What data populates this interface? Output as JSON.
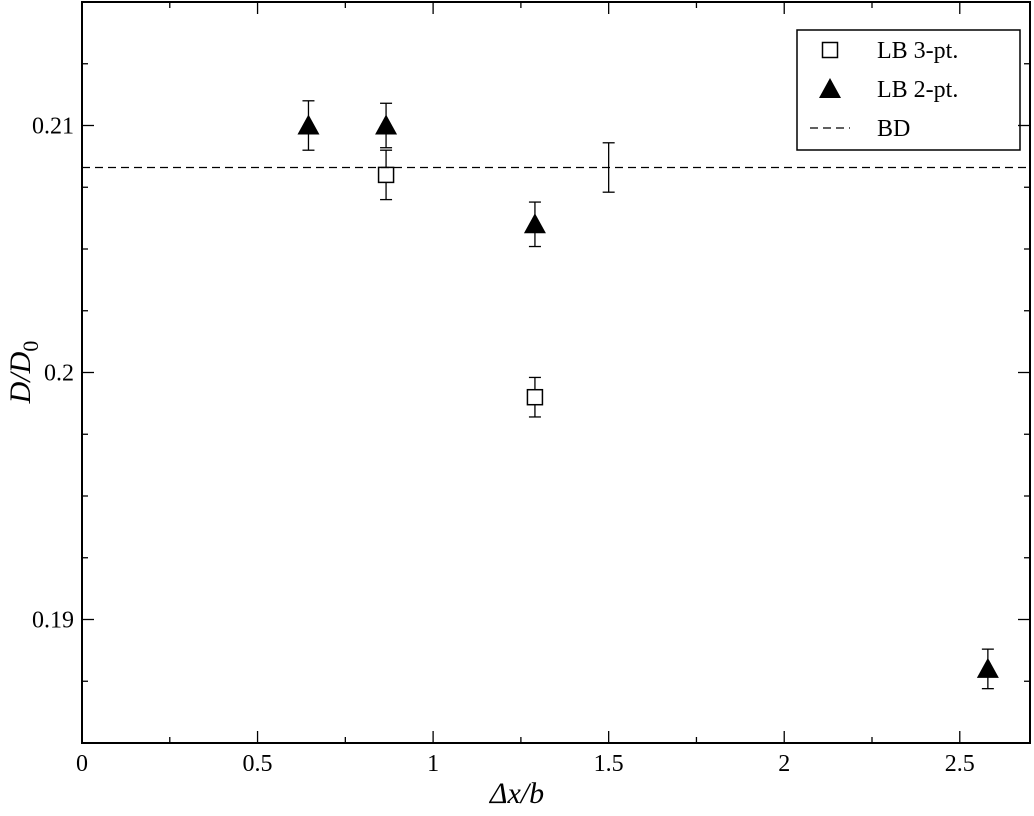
{
  "chart_data": {
    "type": "scatter",
    "xlabel": "Δx/b",
    "ylabel": "D/D",
    "ylabel_subscript": "0",
    "xlim": [
      0,
      2.7
    ],
    "ylim": [
      0.185,
      0.215
    ],
    "xticks": [
      0,
      0.5,
      1,
      1.5,
      2,
      2.5
    ],
    "yticks": [
      0.19,
      0.2,
      0.21
    ],
    "x_minor_ticks": [
      0.25,
      0.75,
      1.25,
      1.75,
      2.25
    ],
    "y_minor_ticks": [
      0.1875,
      0.1925,
      0.195,
      0.1975,
      0.2025,
      0.205,
      0.2075,
      0.2125
    ],
    "legend": "upper right",
    "series": [
      {
        "name": "LB 3-pt.",
        "marker": "open-square",
        "color": "#000000",
        "x": [
          0.866,
          1.29
        ],
        "values": [
          0.208,
          0.199
        ],
        "errors": [
          0.001,
          0.0008
        ]
      },
      {
        "name": "LB 2-pt.",
        "marker": "filled-triangle",
        "color": "#000000",
        "x": [
          0.645,
          0.866,
          1.29,
          2.58
        ],
        "values": [
          0.21,
          0.21,
          0.206,
          0.188
        ],
        "errors": [
          0.001,
          0.0009,
          0.0009,
          0.0008
        ]
      },
      {
        "name": "BD",
        "marker": "dashed-line",
        "color": "#000000",
        "x": [
          1.5
        ],
        "values": [
          0.2083
        ],
        "errors": [
          0.001
        ]
      }
    ]
  }
}
